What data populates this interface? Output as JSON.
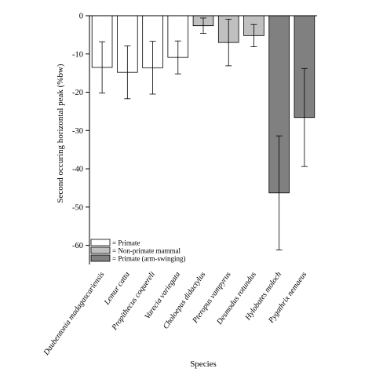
{
  "chart_data": {
    "type": "bar",
    "title": "",
    "xlabel": "Species",
    "ylabel": "Second occuring horizontal peak (%bw)",
    "ylim": [
      -65,
      0
    ],
    "yticks": [
      0,
      -10,
      -20,
      -30,
      -40,
      -50,
      -60
    ],
    "grid": false,
    "legend_position": "bottom-left",
    "categories": [
      "Daubentonia madagascariensis",
      "Lemur catta",
      "Propithecus coquereli",
      "Varecia variegata",
      "Choloepus didactylus",
      "Pteropus vampyrus",
      "Desmodus rotundus",
      "Hylobates moloch",
      "Pygathrix nemaeus"
    ],
    "values": [
      -13.5,
      -14.8,
      -13.6,
      -10.9,
      -2.6,
      -7.0,
      -5.2,
      -46.3,
      -26.6
    ],
    "error": [
      6.7,
      6.9,
      6.9,
      4.3,
      2.0,
      6.1,
      2.9,
      14.9,
      12.8
    ],
    "groups": [
      "Primate",
      "Primate",
      "Primate",
      "Primate",
      "Non-primate mammal",
      "Non-primate mammal",
      "Non-primate mammal",
      "Primate (arm-swinging)",
      "Primate (arm-swinging)"
    ],
    "legend": [
      {
        "label": "= Primate",
        "group": "Primate",
        "color": "#ffffff"
      },
      {
        "label": "= Non-primate mammal",
        "group": "Non-primate mammal",
        "color": "#c0c0c0"
      },
      {
        "label": "= Primate (arm-swinging)",
        "group": "Primate (arm-swinging)",
        "color": "#808080"
      }
    ],
    "colors": {
      "Primate": "#ffffff",
      "Non-primate mammal": "#c0c0c0",
      "Primate (arm-swinging)": "#808080"
    }
  }
}
